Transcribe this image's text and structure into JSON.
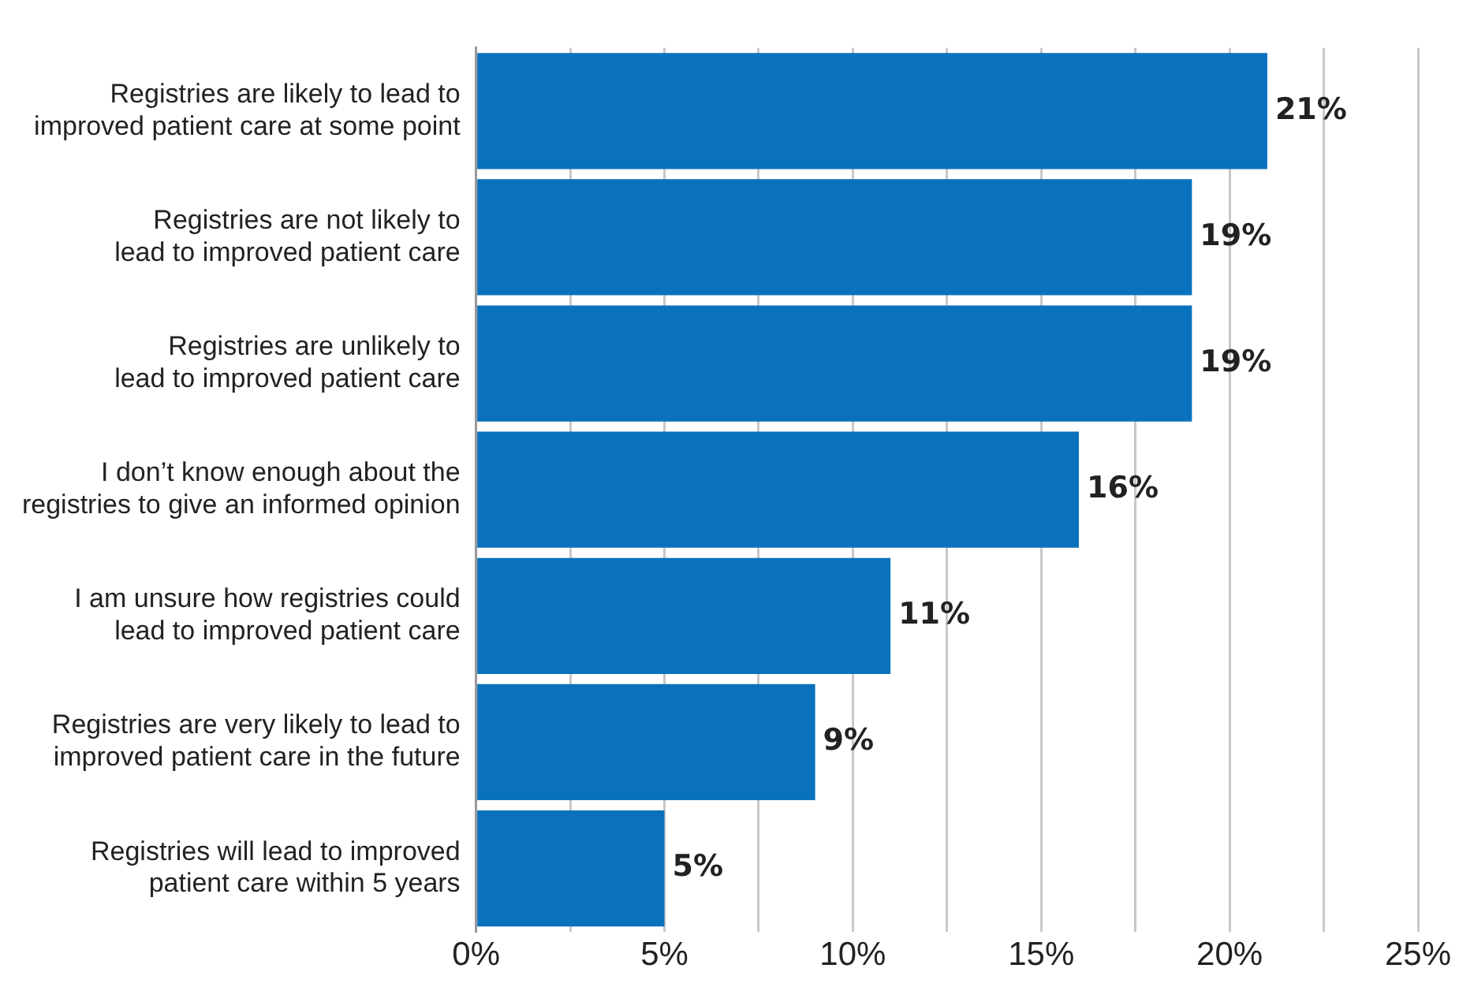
{
  "chart_data": {
    "type": "bar",
    "orientation": "horizontal",
    "categories": [
      "Registries are likely to lead to improved patient care at some point",
      "Registries are not likely to lead to improved patient care",
      "Registries are unlikely to lead to improved patient care",
      "I don’t know enough about the registries to give an informed opinion",
      "I am unsure how registries could lead to improved patient care",
      "Registries are very likely to lead to improved patient care in the future",
      "Registries will lead to improved patient care within 5 years"
    ],
    "values": [
      21,
      19,
      19,
      16,
      11,
      9,
      5
    ],
    "value_labels": [
      "21%",
      "19%",
      "19%",
      "16%",
      "11%",
      "9%",
      "5%"
    ],
    "color": "#0a72bd",
    "xlim": [
      0,
      25
    ],
    "xticks": [
      {
        "value": 0,
        "label": "0%"
      },
      {
        "value": 2.5,
        "label": null
      },
      {
        "value": 5,
        "label": "5%"
      },
      {
        "value": 7.5,
        "label": null
      },
      {
        "value": 10,
        "label": "10%"
      },
      {
        "value": 12.5,
        "label": null
      },
      {
        "value": 15,
        "label": "15%"
      },
      {
        "value": 17.5,
        "label": null
      },
      {
        "value": 20,
        "label": "20%"
      },
      {
        "value": 22.5,
        "label": null
      },
      {
        "value": 25,
        "label": "25%"
      }
    ],
    "grid": "x"
  }
}
